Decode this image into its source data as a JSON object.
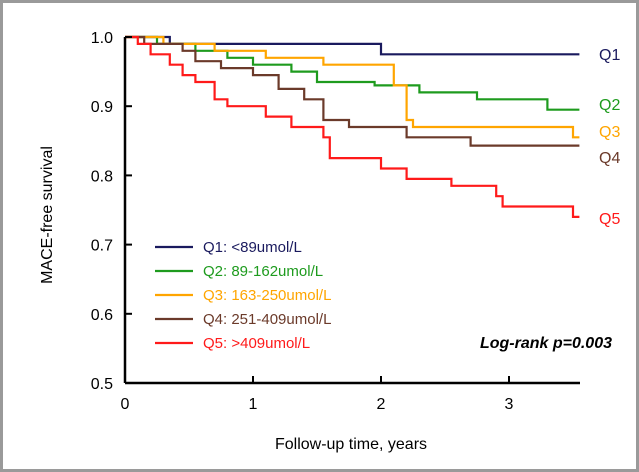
{
  "chart_data": {
    "type": "line",
    "step": true,
    "xlabel": "Follow-up time, years",
    "ylabel": "MACE-free survival",
    "xlim": [
      0,
      3.55
    ],
    "ylim": [
      0.5,
      1.0
    ],
    "xticks": [
      "0",
      "1",
      "2",
      "3"
    ],
    "yticks": [
      "0.5",
      "0.6",
      "0.7",
      "0.8",
      "0.9",
      "1.0"
    ],
    "grid": false,
    "legend_position": "bottom-left",
    "annotation": "Log-rank p=0.003",
    "series": [
      {
        "name": "Q1: <89umol/L",
        "end_label": "Q1",
        "color": "#1a1a5e",
        "points": [
          [
            0,
            1.0
          ],
          [
            0.35,
            1.0
          ],
          [
            0.35,
            0.99
          ],
          [
            2.0,
            0.99
          ],
          [
            2.0,
            0.975
          ],
          [
            3.55,
            0.975
          ]
        ]
      },
      {
        "name": "Q2: 89-162umol/L",
        "end_label": "Q2",
        "color": "#1e9b1e",
        "points": [
          [
            0,
            1.0
          ],
          [
            0.25,
            1.0
          ],
          [
            0.25,
            0.99
          ],
          [
            0.55,
            0.99
          ],
          [
            0.55,
            0.98
          ],
          [
            0.8,
            0.98
          ],
          [
            0.8,
            0.97
          ],
          [
            1.0,
            0.97
          ],
          [
            1.0,
            0.96
          ],
          [
            1.3,
            0.96
          ],
          [
            1.3,
            0.95
          ],
          [
            1.5,
            0.95
          ],
          [
            1.5,
            0.935
          ],
          [
            1.95,
            0.935
          ],
          [
            1.95,
            0.93
          ],
          [
            2.3,
            0.93
          ],
          [
            2.3,
            0.92
          ],
          [
            2.75,
            0.92
          ],
          [
            2.75,
            0.91
          ],
          [
            3.3,
            0.91
          ],
          [
            3.3,
            0.895
          ],
          [
            3.55,
            0.895
          ]
        ]
      },
      {
        "name": "Q3: 163-250umol/L",
        "end_label": "Q3",
        "color": "#ffa500",
        "points": [
          [
            0,
            1.0
          ],
          [
            0.3,
            1.0
          ],
          [
            0.3,
            0.99
          ],
          [
            0.7,
            0.99
          ],
          [
            0.7,
            0.98
          ],
          [
            1.1,
            0.98
          ],
          [
            1.1,
            0.97
          ],
          [
            1.55,
            0.97
          ],
          [
            1.55,
            0.96
          ],
          [
            2.1,
            0.96
          ],
          [
            2.1,
            0.93
          ],
          [
            2.2,
            0.93
          ],
          [
            2.2,
            0.88
          ],
          [
            2.25,
            0.88
          ],
          [
            2.25,
            0.87
          ],
          [
            3.5,
            0.87
          ],
          [
            3.5,
            0.855
          ],
          [
            3.55,
            0.855
          ]
        ]
      },
      {
        "name": "Q4: 251-409umol/L",
        "end_label": "Q4",
        "color": "#6b3a2a",
        "points": [
          [
            0,
            1.0
          ],
          [
            0.15,
            1.0
          ],
          [
            0.15,
            0.99
          ],
          [
            0.45,
            0.99
          ],
          [
            0.45,
            0.98
          ],
          [
            0.55,
            0.98
          ],
          [
            0.55,
            0.965
          ],
          [
            0.75,
            0.965
          ],
          [
            0.75,
            0.955
          ],
          [
            1.0,
            0.955
          ],
          [
            1.0,
            0.945
          ],
          [
            1.2,
            0.945
          ],
          [
            1.2,
            0.925
          ],
          [
            1.4,
            0.925
          ],
          [
            1.4,
            0.91
          ],
          [
            1.55,
            0.91
          ],
          [
            1.55,
            0.88
          ],
          [
            1.75,
            0.88
          ],
          [
            1.75,
            0.87
          ],
          [
            2.2,
            0.87
          ],
          [
            2.2,
            0.855
          ],
          [
            2.7,
            0.855
          ],
          [
            2.7,
            0.843
          ],
          [
            3.55,
            0.843
          ]
        ]
      },
      {
        "name": "Q5: >409umol/L",
        "end_label": "Q5",
        "color": "#ff1a1a",
        "points": [
          [
            0,
            1.0
          ],
          [
            0.1,
            1.0
          ],
          [
            0.1,
            0.99
          ],
          [
            0.2,
            0.99
          ],
          [
            0.2,
            0.975
          ],
          [
            0.35,
            0.975
          ],
          [
            0.35,
            0.96
          ],
          [
            0.45,
            0.96
          ],
          [
            0.45,
            0.945
          ],
          [
            0.55,
            0.945
          ],
          [
            0.55,
            0.935
          ],
          [
            0.7,
            0.935
          ],
          [
            0.7,
            0.91
          ],
          [
            0.8,
            0.91
          ],
          [
            0.8,
            0.9
          ],
          [
            1.1,
            0.9
          ],
          [
            1.1,
            0.885
          ],
          [
            1.3,
            0.885
          ],
          [
            1.3,
            0.87
          ],
          [
            1.55,
            0.87
          ],
          [
            1.55,
            0.855
          ],
          [
            1.6,
            0.855
          ],
          [
            1.6,
            0.825
          ],
          [
            2.0,
            0.825
          ],
          [
            2.0,
            0.81
          ],
          [
            2.2,
            0.81
          ],
          [
            2.2,
            0.795
          ],
          [
            2.55,
            0.795
          ],
          [
            2.55,
            0.785
          ],
          [
            2.9,
            0.785
          ],
          [
            2.9,
            0.77
          ],
          [
            2.95,
            0.77
          ],
          [
            2.95,
            0.755
          ],
          [
            3.5,
            0.755
          ],
          [
            3.5,
            0.74
          ],
          [
            3.55,
            0.74
          ]
        ]
      }
    ]
  }
}
